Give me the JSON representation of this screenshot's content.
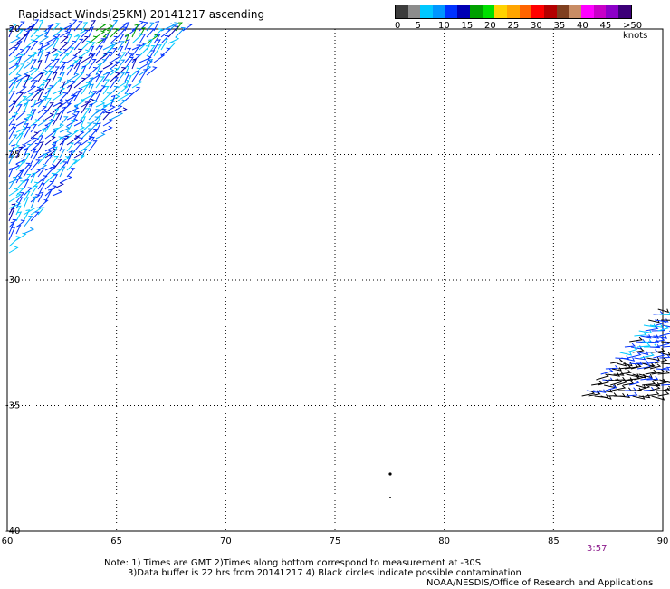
{
  "title": "Rapidsact Winds(25KM) 20141217 ascending",
  "colorbar": {
    "colors": [
      "#3c3c3c",
      "#8c8c8c",
      "#00c8ff",
      "#0096ff",
      "#0032ff",
      "#0000b4",
      "#00a000",
      "#00e000",
      "#ffd200",
      "#ffa500",
      "#ff6400",
      "#ff0000",
      "#b40000",
      "#7f3f1f",
      "#c88c64",
      "#ff00ff",
      "#c800c8",
      "#8c00c8",
      "#3c0078"
    ],
    "labels": [
      "0",
      "5",
      "10",
      "15",
      "20",
      "25",
      "30",
      "35",
      "40",
      "45",
      ">50 knots"
    ]
  },
  "map": {
    "lon_ticks": [
      "60",
      "65",
      "70",
      "75",
      "80",
      "85",
      "90"
    ],
    "lat_ticks": [
      "-20",
      "-25",
      "-30",
      "-35",
      "-40"
    ],
    "lon_range": [
      60,
      90
    ],
    "lat_range": [
      -40,
      -20
    ]
  },
  "time_label": "3:57",
  "notes": {
    "line1": "Note: 1) Times are GMT 2)Times along bottom correspond to measurement at -30S",
    "line2": "3)Data buffer is 22 hrs from 20141217 4) Black circles indicate possible contamination"
  },
  "credit": "NOAA/NESDIS/Office of Research and Applications"
}
